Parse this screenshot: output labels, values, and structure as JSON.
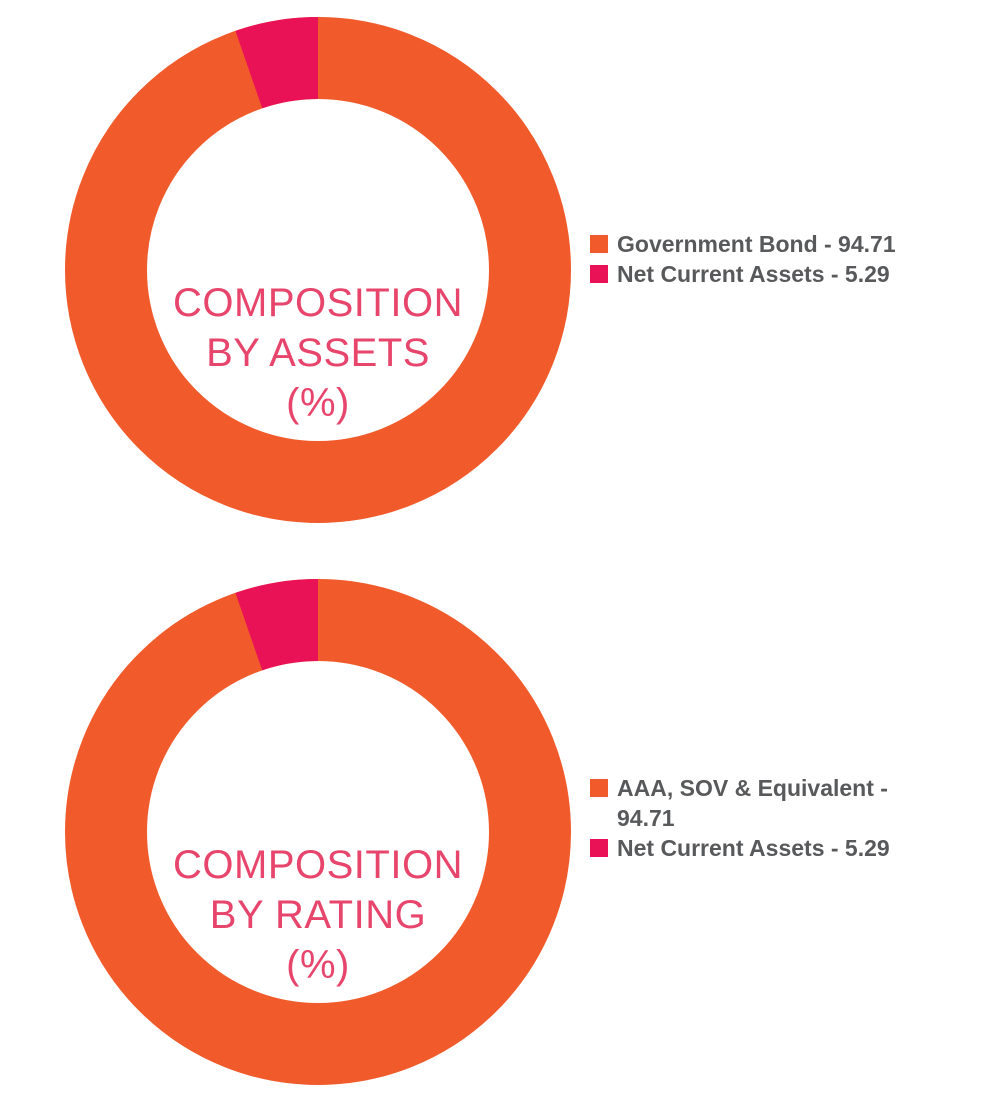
{
  "style": {
    "background": "#FFFFFF",
    "legend_text_color": "#58595B",
    "orange": "#F15B2B",
    "pink": "#EA1256",
    "title_pink": "#E7456B"
  },
  "chart_data": [
    {
      "type": "pie",
      "variant": "donut",
      "title": "COMPOSITION BY ASSETS (%)",
      "title_lines": [
        "COMPOSITION",
        "BY ASSETS",
        "(%)"
      ],
      "title_color": "#E7456B",
      "legend_position": "right",
      "slice_layout": "secondary slice ends at 12 o'clock, drawn counterclockwise from top",
      "series": [
        {
          "name": "Government Bond",
          "value": 94.71,
          "color": "#F15B2B",
          "display": "Government Bond - 94.71"
        },
        {
          "name": "Net Current Assets",
          "value": 5.29,
          "color": "#EA1256",
          "display": "Net Current Assets - 5.29"
        }
      ]
    },
    {
      "type": "pie",
      "variant": "donut",
      "title": "COMPOSITION BY RATING (%)",
      "title_lines": [
        "COMPOSITION",
        "BY RATING",
        "(%)"
      ],
      "title_color": "#E7456B",
      "legend_position": "right",
      "slice_layout": "secondary slice ends at 12 o'clock, drawn counterclockwise from top",
      "series": [
        {
          "name": "AAA, SOV & Equivalent",
          "value": 94.71,
          "color": "#F15B2B",
          "display": "AAA, SOV & Equivalent -\n94.71"
        },
        {
          "name": "Net Current Assets",
          "value": 5.29,
          "color": "#EA1256",
          "display": "Net Current Assets - 5.29"
        }
      ]
    }
  ]
}
